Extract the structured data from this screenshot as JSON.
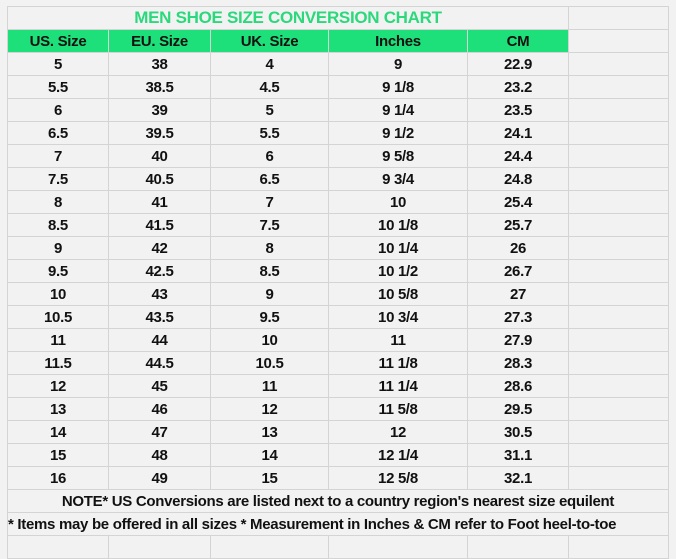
{
  "title": "MEN SHOE SIZE CONVERSION CHART",
  "colors": {
    "title": "#2bd97c",
    "header_bg": "#1ee07a",
    "grid": "#d4d4d4",
    "background": "#f2f2f2"
  },
  "columns": [
    "US. Size",
    "EU. Size",
    "UK. Size",
    "Inches",
    "CM"
  ],
  "rows": [
    [
      "5",
      "38",
      "4",
      "9",
      "22.9"
    ],
    [
      "5.5",
      "38.5",
      "4.5",
      "9 1/8",
      "23.2"
    ],
    [
      "6",
      "39",
      "5",
      "9 1/4",
      "23.5"
    ],
    [
      "6.5",
      "39.5",
      "5.5",
      "9 1/2",
      "24.1"
    ],
    [
      "7",
      "40",
      "6",
      "9 5/8",
      "24.4"
    ],
    [
      "7.5",
      "40.5",
      "6.5",
      "9 3/4",
      "24.8"
    ],
    [
      "8",
      "41",
      "7",
      "10",
      "25.4"
    ],
    [
      "8.5",
      "41.5",
      "7.5",
      "10 1/8",
      "25.7"
    ],
    [
      "9",
      "42",
      "8",
      "10 1/4",
      "26"
    ],
    [
      "9.5",
      "42.5",
      "8.5",
      "10 1/2",
      "26.7"
    ],
    [
      "10",
      "43",
      "9",
      "10 5/8",
      "27"
    ],
    [
      "10.5",
      "43.5",
      "9.5",
      "10 3/4",
      "27.3"
    ],
    [
      "11",
      "44",
      "10",
      "11",
      "27.9"
    ],
    [
      "11.5",
      "44.5",
      "10.5",
      "11 1/8",
      "28.3"
    ],
    [
      "12",
      "45",
      "11",
      "11 1/4",
      "28.6"
    ],
    [
      "13",
      "46",
      "12",
      "11 5/8",
      "29.5"
    ],
    [
      "14",
      "47",
      "13",
      "12",
      "30.5"
    ],
    [
      "15",
      "48",
      "14",
      "12 1/4",
      "31.1"
    ],
    [
      "16",
      "49",
      "15",
      "12 5/8",
      "32.1"
    ]
  ],
  "note1": "NOTE* US Conversions are listed next to a country region's nearest size equilent",
  "note2": "* Items may be offered in all sizes * Measurement in Inches & CM refer to Foot heel-to-toe"
}
